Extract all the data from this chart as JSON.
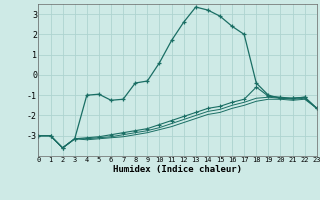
{
  "xlabel": "Humidex (Indice chaleur)",
  "background_color": "#ceeae6",
  "grid_color": "#aed4d0",
  "line_color": "#1a6e64",
  "x_values": [
    0,
    1,
    2,
    3,
    4,
    5,
    6,
    7,
    8,
    9,
    10,
    11,
    12,
    13,
    14,
    15,
    16,
    17,
    18,
    19,
    20,
    21,
    22,
    23
  ],
  "series1": [
    -3.0,
    -3.0,
    -3.6,
    -3.15,
    -1.0,
    -0.95,
    -1.25,
    -1.2,
    -0.4,
    -0.3,
    0.6,
    1.7,
    2.6,
    3.35,
    3.2,
    2.9,
    2.4,
    2.0,
    -0.4,
    -1.0,
    -1.15,
    -1.15,
    -1.1,
    -1.65
  ],
  "series2": [
    -3.0,
    -3.0,
    -3.6,
    -3.15,
    -3.1,
    -3.05,
    -2.95,
    -2.85,
    -2.75,
    -2.65,
    -2.45,
    -2.25,
    -2.05,
    -1.85,
    -1.65,
    -1.55,
    -1.35,
    -1.2,
    -0.6,
    -1.05,
    -1.1,
    -1.15,
    -1.1,
    -1.65
  ],
  "series3": [
    -3.0,
    -3.0,
    -3.6,
    -3.15,
    -3.15,
    -3.1,
    -3.05,
    -2.95,
    -2.85,
    -2.75,
    -2.6,
    -2.4,
    -2.2,
    -2.0,
    -1.8,
    -1.7,
    -1.5,
    -1.35,
    -1.15,
    -1.1,
    -1.15,
    -1.2,
    -1.15,
    -1.65
  ],
  "series4": [
    -3.0,
    -3.0,
    -3.6,
    -3.15,
    -3.2,
    -3.15,
    -3.1,
    -3.05,
    -2.95,
    -2.85,
    -2.7,
    -2.55,
    -2.35,
    -2.15,
    -1.95,
    -1.85,
    -1.65,
    -1.5,
    -1.3,
    -1.2,
    -1.2,
    -1.25,
    -1.2,
    -1.65
  ],
  "xlim": [
    0,
    23
  ],
  "ylim": [
    -4.0,
    3.5
  ],
  "yticks": [
    -3,
    -2,
    -1,
    0,
    1,
    2,
    3
  ],
  "xticks": [
    0,
    1,
    2,
    3,
    4,
    5,
    6,
    7,
    8,
    9,
    10,
    11,
    12,
    13,
    14,
    15,
    16,
    17,
    18,
    19,
    20,
    21,
    22,
    23
  ]
}
